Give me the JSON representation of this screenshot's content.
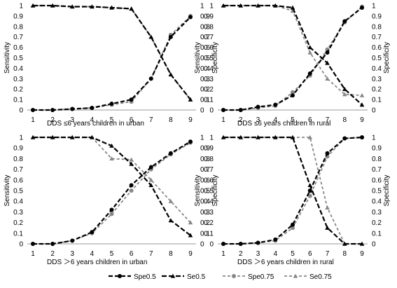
{
  "legend": [
    {
      "name": "Spe0.5",
      "color": "#000000",
      "marker": "circle"
    },
    {
      "name": "Se0.5",
      "color": "#000000",
      "marker": "triangle"
    },
    {
      "name": "Spe0.75",
      "color": "#888888",
      "marker": "circle"
    },
    {
      "name": "Se0.75",
      "color": "#888888",
      "marker": "triangle"
    }
  ],
  "chart_data": [
    {
      "type": "line",
      "xlabel": "DDS  ≤6 years children in urban",
      "ylabel_left": "Sensitivity",
      "ylabel_right": "Specificity",
      "x": [
        1,
        2,
        3,
        4,
        5,
        6,
        7,
        8,
        9
      ],
      "ylim": [
        0,
        1
      ],
      "yticks": [
        "0",
        "0.1",
        "0.2",
        "0.3",
        "0.4",
        "0.5",
        "0.6",
        "0.7",
        "0.8",
        "0.9",
        "1"
      ],
      "series": [
        {
          "name": "Spe0.5",
          "values": [
            0,
            0,
            0.01,
            0.02,
            0.06,
            0.1,
            0.3,
            0.7,
            0.89
          ]
        },
        {
          "name": "Se0.5",
          "values": [
            1,
            1,
            0.99,
            0.99,
            0.98,
            0.97,
            0.7,
            0.34,
            0.1
          ]
        },
        {
          "name": "Spe0.75",
          "values": [
            0,
            0,
            0.01,
            0.02,
            0.05,
            0.08,
            0.3,
            0.72,
            0.9
          ]
        },
        {
          "name": "Se0.75",
          "values": [
            1,
            1,
            0.99,
            0.99,
            0.98,
            0.97,
            0.7,
            0.34,
            0.1
          ]
        }
      ]
    },
    {
      "type": "line",
      "xlabel": "DDS  ≤6 years children in rural",
      "ylabel_left": "Sensitivity",
      "ylabel_right": "Specificity",
      "x": [
        1,
        2,
        3,
        4,
        5,
        6,
        7,
        8,
        9
      ],
      "ylim": [
        0,
        1
      ],
      "yticks": [
        "0",
        "0.1",
        "0.2",
        "0.3",
        "0.4",
        "0.5",
        "0.6",
        "0.7",
        "0.8",
        "0.9",
        "1"
      ],
      "series": [
        {
          "name": "Spe0.5",
          "values": [
            0,
            0,
            0.03,
            0.05,
            0.14,
            0.35,
            0.55,
            0.85,
            0.98
          ]
        },
        {
          "name": "Se0.5",
          "values": [
            1,
            1,
            1,
            1,
            0.98,
            0.6,
            0.45,
            0.2,
            0.05
          ]
        },
        {
          "name": "Spe0.75",
          "values": [
            0,
            0,
            0.02,
            0.04,
            0.17,
            0.33,
            0.58,
            0.84,
            0.99
          ]
        },
        {
          "name": "Se0.75",
          "values": [
            1,
            1,
            1,
            1,
            0.95,
            0.55,
            0.3,
            0.15,
            0.14
          ]
        }
      ]
    },
    {
      "type": "line",
      "xlabel": "DDS  ＞6 years children in urban",
      "ylabel_left": "Sensitivity",
      "ylabel_right": "Specificity",
      "x": [
        1,
        2,
        3,
        4,
        5,
        6,
        7,
        8,
        9
      ],
      "ylim": [
        0,
        1
      ],
      "yticks": [
        "0",
        "0.1",
        "0.2",
        "0.3",
        "0.4",
        "0.5",
        "0.6",
        "0.7",
        "0.8",
        "0.9",
        "1"
      ],
      "series": [
        {
          "name": "Spe0.5",
          "values": [
            0,
            0,
            0.03,
            0.11,
            0.32,
            0.55,
            0.72,
            0.85,
            0.96
          ]
        },
        {
          "name": "Se0.5",
          "values": [
            1,
            1,
            1,
            1,
            0.92,
            0.75,
            0.55,
            0.22,
            0.08
          ]
        },
        {
          "name": "Spe0.75",
          "values": [
            0,
            0,
            0.03,
            0.1,
            0.28,
            0.5,
            0.7,
            0.84,
            0.95
          ]
        },
        {
          "name": "Se0.75",
          "values": [
            1,
            1,
            1,
            1,
            0.8,
            0.79,
            0.6,
            0.4,
            0.2
          ]
        }
      ]
    },
    {
      "type": "line",
      "xlabel": "DDS  ＞6 years children in rural",
      "ylabel_left": "Sensitivity",
      "ylabel_right": "Specificity",
      "x": [
        1,
        2,
        3,
        4,
        5,
        6,
        7,
        8,
        9
      ],
      "ylim": [
        0,
        1
      ],
      "yticks": [
        "0",
        "0.1",
        "0.2",
        "0.3",
        "0.4",
        "0.5",
        "0.6",
        "0.7",
        "0.8",
        "0.9",
        "1"
      ],
      "series": [
        {
          "name": "Spe0.5",
          "values": [
            0,
            0,
            0.01,
            0.04,
            0.18,
            0.5,
            0.85,
            0.99,
            1
          ]
        },
        {
          "name": "Se0.5",
          "values": [
            1,
            1,
            1,
            1,
            1,
            0.55,
            0.15,
            0,
            0
          ]
        },
        {
          "name": "Spe0.75",
          "values": [
            0,
            0,
            0.01,
            0.03,
            0.15,
            0.45,
            0.82,
            0.99,
            1
          ]
        },
        {
          "name": "Se0.75",
          "values": [
            1,
            1,
            1,
            1,
            1,
            1,
            0.34,
            0,
            0
          ]
        }
      ]
    }
  ]
}
